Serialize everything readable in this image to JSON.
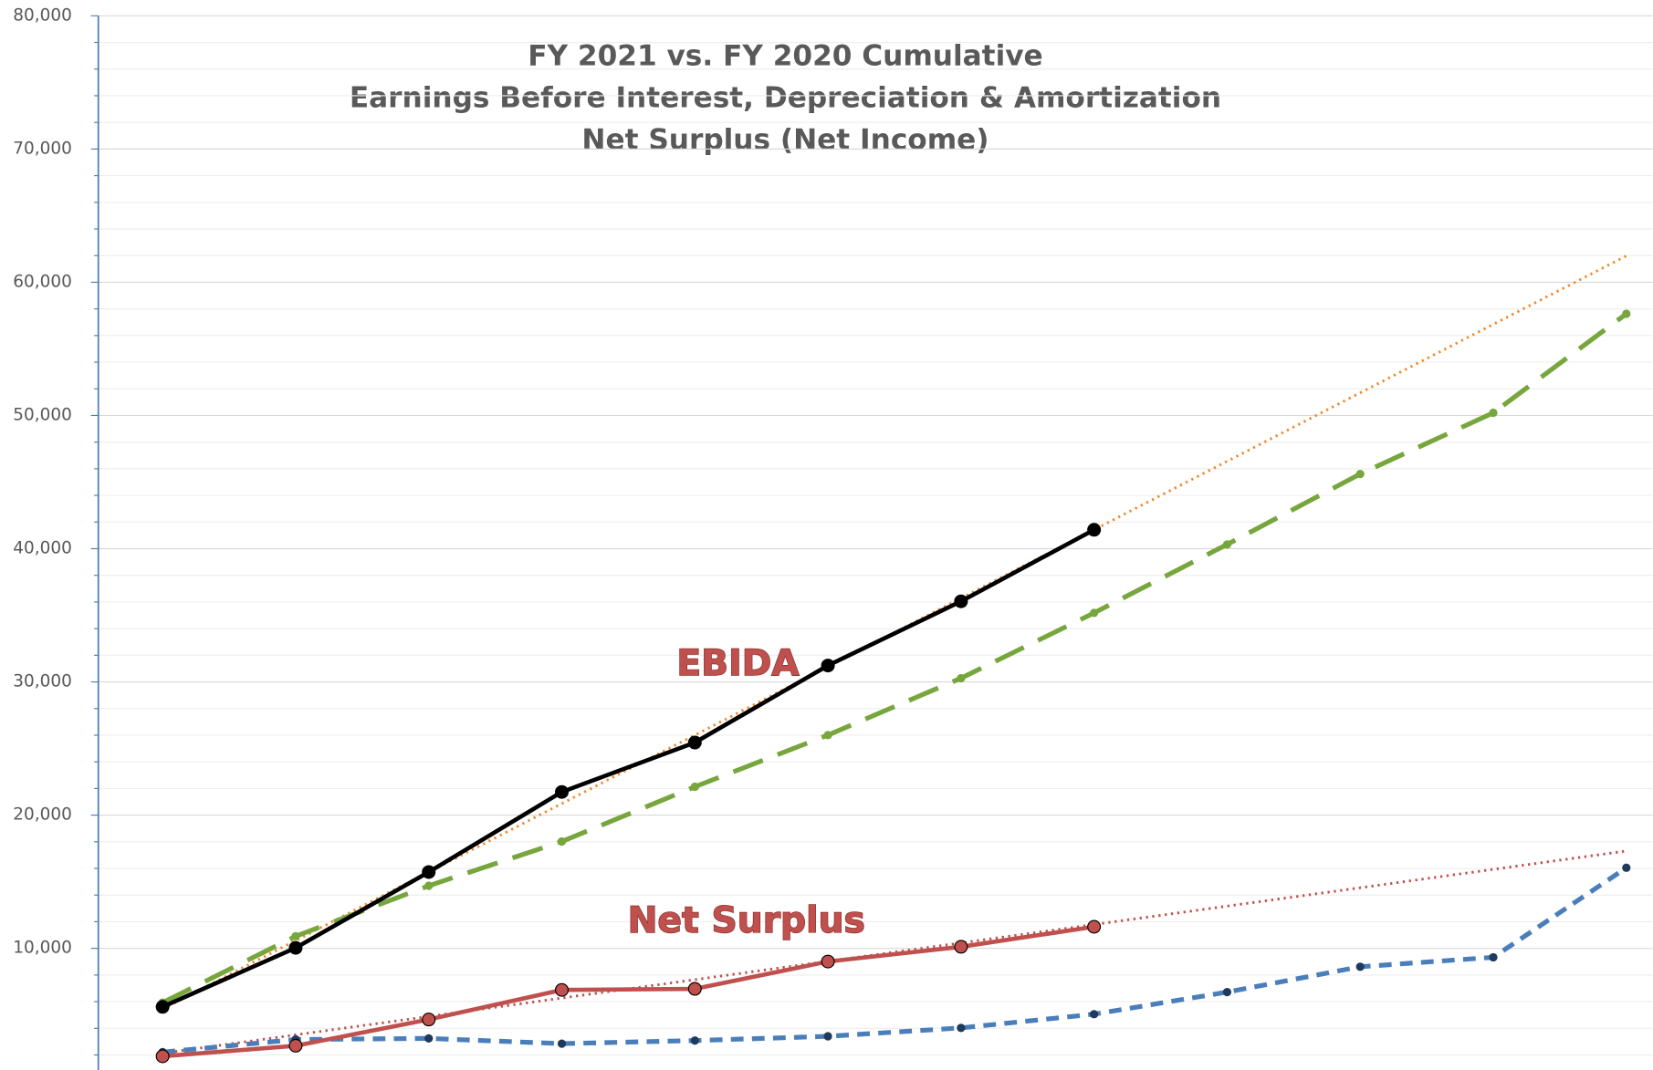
{
  "chart_data": {
    "type": "line",
    "title": [
      "FY 2021 vs. FY 2020 Cumulative",
      "Earnings Before Interest, Depreciation & Amortization",
      "Net Surplus (Net Income)"
    ],
    "categories": [
      null,
      null,
      null,
      null,
      null,
      null,
      null,
      null,
      null,
      null,
      null,
      null
    ],
    "series": [
      {
        "color": "#77a63c",
        "dash": "dashed",
        "values": [
          5930,
          10910,
          14700,
          18020,
          22130,
          26010,
          30280,
          35180,
          40320,
          45610,
          50200,
          57630
        ]
      },
      {
        "color": "#4a7ebb",
        "dash": "dashed",
        "values": [
          2210,
          3160,
          3240,
          2850,
          3080,
          3400,
          4030,
          5060,
          6720,
          8620,
          9330,
          16050
        ]
      },
      {
        "color": "#000000",
        "dash": "solid",
        "values": [
          5610,
          10040,
          15730,
          21740,
          25450,
          31230,
          36050,
          41420,
          null,
          null,
          null,
          null
        ]
      },
      {
        "color": "#c0504d",
        "dash": "solid",
        "values": [
          1900,
          2690,
          4660,
          6880,
          6960,
          9010,
          10120,
          11620,
          null,
          null,
          null,
          null
        ]
      }
    ],
    "trendlines": [
      {
        "color": "#f0892c",
        "values": [
          5450,
          61980
        ]
      },
      {
        "color": "#c0504d",
        "values": [
          2130,
          17310
        ]
      }
    ],
    "annotations": [
      "EBIDA",
      "Net Surplus"
    ],
    "ylim": [
      870,
      80000
    ],
    "yticks": [
      {
        "value": 10000,
        "label": "10,000"
      },
      {
        "value": 20000,
        "label": "20,000"
      },
      {
        "value": 30000,
        "label": "30,000"
      },
      {
        "value": 40000,
        "label": "40,000"
      },
      {
        "value": 50000,
        "label": "50,000"
      },
      {
        "value": 60000,
        "label": "60,000"
      },
      {
        "value": 70000,
        "label": "70,000"
      },
      {
        "value": 80000,
        "label": "80,000"
      }
    ],
    "minor_yticks": [
      2000,
      4000,
      6000,
      8000,
      12000,
      14000,
      16000,
      18000,
      22000,
      24000,
      26000,
      28000,
      32000,
      34000,
      36000,
      38000,
      42000,
      44000,
      46000,
      48000,
      52000,
      54000,
      56000,
      58000,
      62000,
      64000,
      66000,
      68000,
      72000,
      74000,
      76000,
      78000
    ],
    "grid": true
  }
}
